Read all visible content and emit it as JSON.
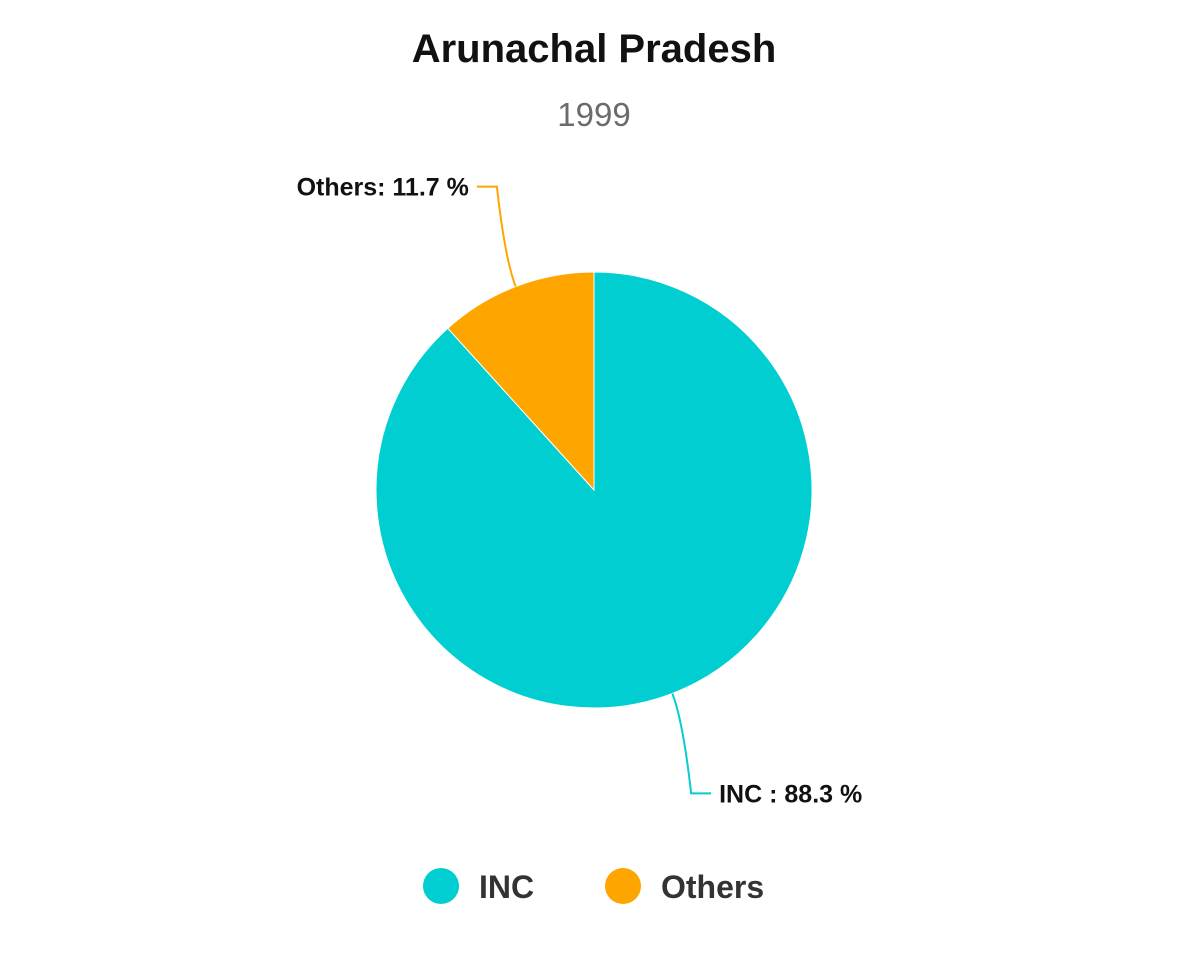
{
  "chart_data": {
    "type": "pie",
    "title": "Arunachal Pradesh",
    "subtitle": "1999",
    "legend_position": "bottom",
    "slices": [
      {
        "label": "INC",
        "value": 88.3,
        "color": "#00CED1",
        "data_label": "INC : 88.3 %"
      },
      {
        "label": "Others",
        "value": 11.7,
        "color": "#FFA500",
        "data_label": "Others: 11.7 %"
      }
    ],
    "legend": [
      {
        "label": "INC",
        "color": "#00CED1"
      },
      {
        "label": "Others",
        "color": "#FFA500"
      }
    ]
  }
}
